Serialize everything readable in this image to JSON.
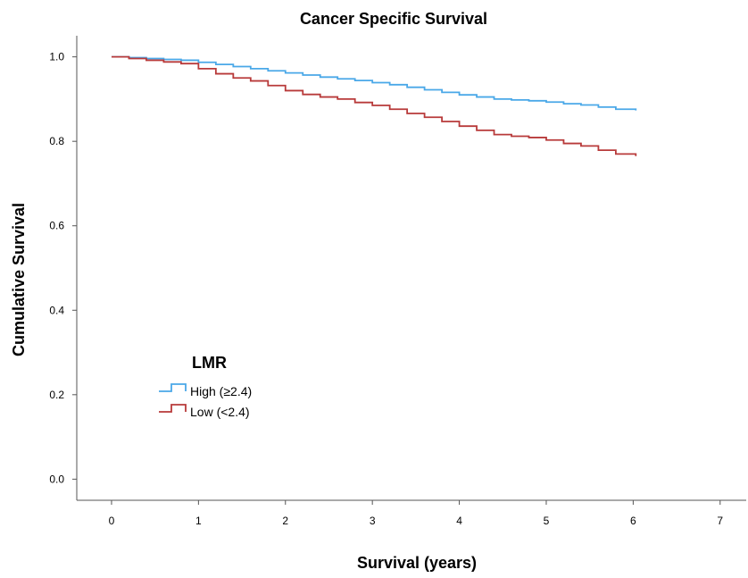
{
  "chart_data": {
    "type": "line",
    "title": "Cancer Specific Survival",
    "xlabel": "Survival (years)",
    "ylabel": "Cumulative Survival",
    "xlim": [
      -0.4,
      7.3
    ],
    "ylim": [
      -0.05,
      1.05
    ],
    "xticks": [
      "0",
      "1",
      "2",
      "3",
      "4",
      "5",
      "6",
      "7"
    ],
    "yticks": [
      "0.0",
      "0.2",
      "0.4",
      "0.6",
      "0.8",
      "1.0"
    ],
    "grid": false,
    "legend": {
      "title": "LMR",
      "placement": "lower-left"
    },
    "series": [
      {
        "name": "High (≥2.4)",
        "color": "#4aa8e8",
        "x": [
          0,
          0.2,
          0.4,
          0.6,
          0.8,
          1.0,
          1.2,
          1.4,
          1.6,
          1.8,
          2.0,
          2.2,
          2.4,
          2.6,
          2.8,
          3.0,
          3.2,
          3.4,
          3.6,
          3.8,
          4.0,
          4.2,
          4.4,
          4.6,
          4.8,
          5.0,
          5.2,
          5.4,
          5.6,
          5.8,
          6.03
        ],
        "y": [
          1.0,
          0.998,
          0.996,
          0.994,
          0.992,
          0.987,
          0.982,
          0.977,
          0.972,
          0.967,
          0.962,
          0.957,
          0.952,
          0.948,
          0.944,
          0.939,
          0.934,
          0.928,
          0.922,
          0.916,
          0.91,
          0.905,
          0.9,
          0.898,
          0.896,
          0.893,
          0.889,
          0.886,
          0.881,
          0.876,
          0.873
        ]
      },
      {
        "name": "Low (<2.4)",
        "color": "#b83a3a",
        "x": [
          0,
          0.2,
          0.4,
          0.6,
          0.8,
          1.0,
          1.2,
          1.4,
          1.6,
          1.8,
          2.0,
          2.2,
          2.4,
          2.6,
          2.8,
          3.0,
          3.2,
          3.4,
          3.6,
          3.8,
          4.0,
          4.2,
          4.4,
          4.6,
          4.8,
          5.0,
          5.2,
          5.4,
          5.6,
          5.8,
          6.03
        ],
        "y": [
          1.0,
          0.996,
          0.992,
          0.988,
          0.984,
          0.972,
          0.96,
          0.95,
          0.943,
          0.932,
          0.92,
          0.911,
          0.905,
          0.9,
          0.892,
          0.885,
          0.876,
          0.866,
          0.857,
          0.847,
          0.836,
          0.826,
          0.816,
          0.812,
          0.809,
          0.803,
          0.795,
          0.789,
          0.779,
          0.77,
          0.765
        ]
      }
    ]
  }
}
